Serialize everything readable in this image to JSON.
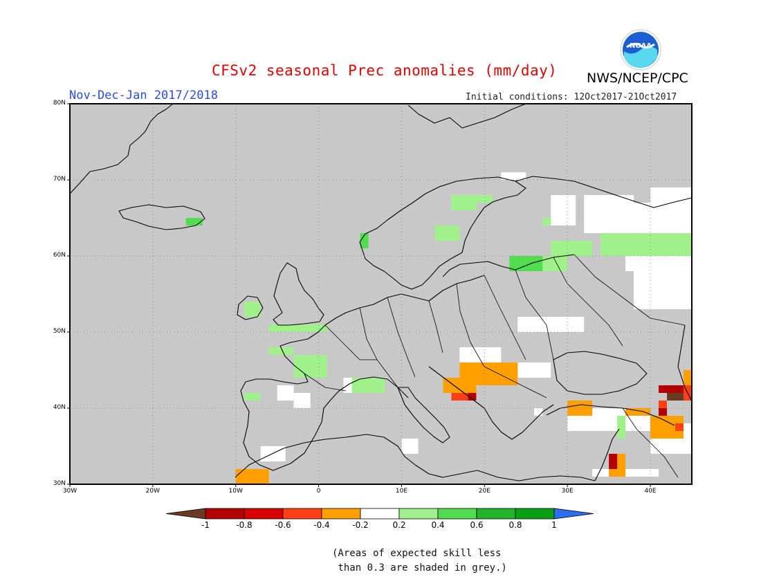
{
  "header": {
    "title": "CFSv2 seasonal Prec anomalies (mm/day)",
    "period": "Nov-Dec-Jan 2017/2018",
    "agency": "NWS/NCEP/CPC",
    "initial_conditions": "Initial conditions: 12Oct2017-21Oct2017",
    "logo_text": "NOAA"
  },
  "map": {
    "lat_labels": [
      "80N",
      "70N",
      "60N",
      "50N",
      "40N",
      "30N"
    ],
    "lon_labels": [
      "30W",
      "20W",
      "10W",
      "0",
      "10E",
      "20E",
      "30E",
      "40E"
    ],
    "lon_range": [
      -30,
      45
    ],
    "lat_range": [
      30,
      80
    ],
    "grey_meaning": "skill < 0.3"
  },
  "colorbar": {
    "labels": [
      "-1",
      "-0.8",
      "-0.6",
      "-0.4",
      "-0.2",
      "0.2",
      "0.4",
      "0.6",
      "0.8",
      "1"
    ],
    "colors": [
      "#6b3a24",
      "#b30000",
      "#d90000",
      "#ff4015",
      "#ffa000",
      "#ffffff",
      "#a0f08c",
      "#52dc50",
      "#22b42a",
      "#0aa014",
      "#2d6ef0"
    ]
  },
  "note": {
    "line1": "(Areas of expected skill less",
    "line2": " than 0.3 are shaded in grey.)"
  }
}
